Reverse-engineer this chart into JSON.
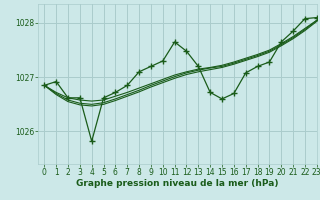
{
  "title": "Graphe pression niveau de la mer (hPa)",
  "background_color": "#cce8e8",
  "grid_color": "#aacccc",
  "line_color": "#1a5c1a",
  "xlim": [
    -0.5,
    23
  ],
  "ylim": [
    1025.4,
    1028.35
  ],
  "yticks": [
    1026,
    1027,
    1028
  ],
  "xticks": [
    0,
    1,
    2,
    3,
    4,
    5,
    6,
    7,
    8,
    9,
    10,
    11,
    12,
    13,
    14,
    15,
    16,
    17,
    18,
    19,
    20,
    21,
    22,
    23
  ],
  "series_smooth": [
    [
      1026.85,
      1026.72,
      1026.62,
      1026.58,
      1026.56,
      1026.58,
      1026.65,
      1026.72,
      1026.8,
      1026.88,
      1026.96,
      1027.04,
      1027.1,
      1027.15,
      1027.18,
      1027.22,
      1027.28,
      1027.35,
      1027.42,
      1027.5,
      1027.62,
      1027.75,
      1027.9,
      1028.05
    ],
    [
      1026.85,
      1026.7,
      1026.58,
      1026.52,
      1026.5,
      1026.53,
      1026.6,
      1026.68,
      1026.76,
      1026.85,
      1026.93,
      1027.01,
      1027.08,
      1027.13,
      1027.17,
      1027.2,
      1027.26,
      1027.33,
      1027.4,
      1027.48,
      1027.6,
      1027.73,
      1027.88,
      1028.05
    ],
    [
      1026.85,
      1026.68,
      1026.55,
      1026.49,
      1026.47,
      1026.5,
      1026.57,
      1026.65,
      1026.73,
      1026.82,
      1026.9,
      1026.98,
      1027.05,
      1027.1,
      1027.14,
      1027.18,
      1027.24,
      1027.31,
      1027.38,
      1027.46,
      1027.58,
      1027.71,
      1027.86,
      1028.03
    ]
  ],
  "series_main": [
    1026.85,
    1026.92,
    1026.62,
    1026.62,
    1025.82,
    1026.62,
    1026.72,
    1026.85,
    1027.1,
    1027.2,
    1027.3,
    1027.65,
    1027.48,
    1027.2,
    1026.72,
    1026.6,
    1026.7,
    1027.08,
    1027.2,
    1027.28,
    1027.65,
    1027.85,
    1028.08,
    1028.1
  ],
  "tick_fontsize": 5.5,
  "title_fontsize": 6.5
}
